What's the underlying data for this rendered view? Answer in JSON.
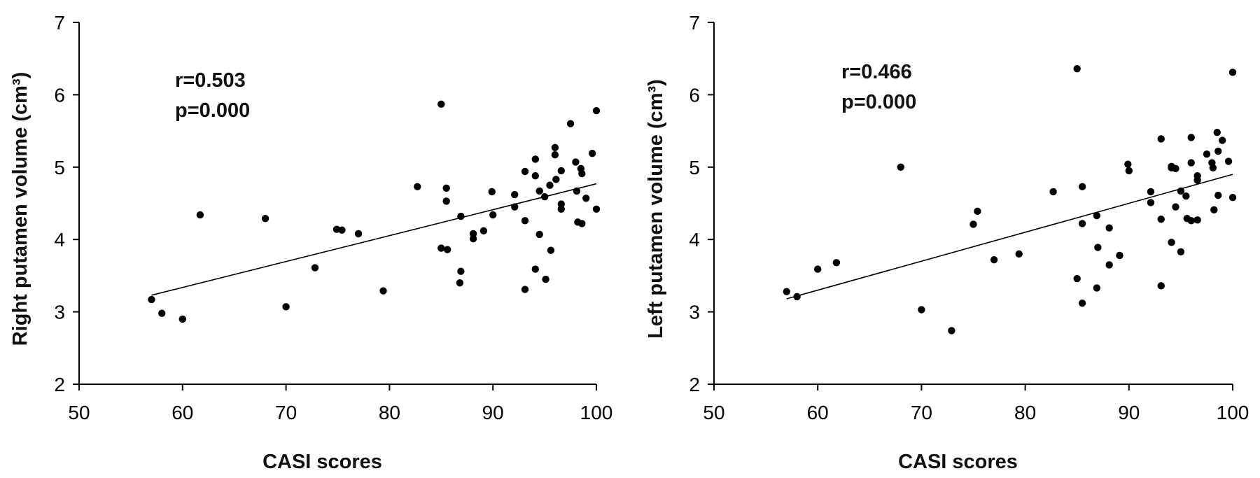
{
  "chart_data": [
    {
      "type": "scatter",
      "xlabel": "CASI scores",
      "ylabel": "Right putamen volume (cm³)",
      "xlim": [
        50,
        100
      ],
      "ylim": [
        2,
        7
      ],
      "xticks": [
        "50",
        "60",
        "70",
        "80",
        "90",
        "100"
      ],
      "yticks": [
        "2",
        "3",
        "4",
        "5",
        "6",
        "7"
      ],
      "annotation": {
        "r": "r=0.503",
        "p": "p=0.000"
      },
      "trendline": {
        "x": [
          57,
          100
        ],
        "y": [
          3.23,
          4.77
        ]
      },
      "points": [
        [
          57,
          3.17
        ],
        [
          58,
          2.98
        ],
        [
          60,
          2.9
        ],
        [
          61.7,
          4.34
        ],
        [
          68,
          4.29
        ],
        [
          70,
          3.07
        ],
        [
          72.8,
          3.61
        ],
        [
          74.9,
          4.14
        ],
        [
          75.4,
          4.13
        ],
        [
          77,
          4.08
        ],
        [
          79.4,
          3.29
        ],
        [
          82.7,
          4.73
        ],
        [
          85,
          5.87
        ],
        [
          85,
          3.88
        ],
        [
          85.5,
          4.53
        ],
        [
          85.5,
          4.71
        ],
        [
          85.6,
          3.86
        ],
        [
          86.9,
          4.32
        ],
        [
          86.9,
          3.56
        ],
        [
          86.8,
          3.4
        ],
        [
          88.1,
          4.01
        ],
        [
          88.1,
          4.08
        ],
        [
          89.1,
          4.12
        ],
        [
          89.9,
          4.66
        ],
        [
          90,
          4.34
        ],
        [
          92.1,
          4.62
        ],
        [
          92.1,
          4.45
        ],
        [
          93.1,
          4.94
        ],
        [
          93.1,
          4.26
        ],
        [
          93.1,
          3.31
        ],
        [
          94.1,
          5.11
        ],
        [
          94.1,
          4.88
        ],
        [
          94.1,
          3.59
        ],
        [
          94.5,
          4.67
        ],
        [
          94.5,
          4.07
        ],
        [
          95,
          4.59
        ],
        [
          95.1,
          3.45
        ],
        [
          95.5,
          4.75
        ],
        [
          95.6,
          3.85
        ],
        [
          96,
          5.27
        ],
        [
          96,
          5.17
        ],
        [
          96.1,
          4.83
        ],
        [
          96.6,
          4.95
        ],
        [
          96.6,
          4.49
        ],
        [
          96.6,
          4.42
        ],
        [
          97.5,
          5.6
        ],
        [
          98,
          5.07
        ],
        [
          98.1,
          4.67
        ],
        [
          98.2,
          4.24
        ],
        [
          98.5,
          4.98
        ],
        [
          98.6,
          4.91
        ],
        [
          98.6,
          4.22
        ],
        [
          99,
          4.57
        ],
        [
          99.6,
          5.19
        ],
        [
          100,
          5.78
        ],
        [
          100,
          4.42
        ]
      ]
    },
    {
      "type": "scatter",
      "xlabel": "CASI scores",
      "ylabel": "Left putamen volume (cm³)",
      "xlim": [
        50,
        100
      ],
      "ylim": [
        2,
        7
      ],
      "xticks": [
        "50",
        "60",
        "70",
        "80",
        "90",
        "100"
      ],
      "yticks": [
        "2",
        "3",
        "4",
        "5",
        "6",
        "7"
      ],
      "annotation": {
        "r": "r=0.466",
        "p": "p=0.000"
      },
      "trendline": {
        "x": [
          57,
          100
        ],
        "y": [
          3.18,
          4.9
        ]
      },
      "points": [
        [
          57,
          3.28
        ],
        [
          58,
          3.21
        ],
        [
          60,
          3.59
        ],
        [
          61.8,
          3.68
        ],
        [
          68,
          5.0
        ],
        [
          70,
          3.03
        ],
        [
          72.9,
          2.74
        ],
        [
          75,
          4.21
        ],
        [
          75.4,
          4.39
        ],
        [
          77,
          3.72
        ],
        [
          79.4,
          3.8
        ],
        [
          82.7,
          4.66
        ],
        [
          85,
          6.36
        ],
        [
          85,
          3.46
        ],
        [
          85.5,
          4.73
        ],
        [
          85.5,
          4.22
        ],
        [
          85.5,
          3.12
        ],
        [
          86.9,
          4.33
        ],
        [
          87,
          3.89
        ],
        [
          86.9,
          3.33
        ],
        [
          88.1,
          4.16
        ],
        [
          88.1,
          3.65
        ],
        [
          89.1,
          3.78
        ],
        [
          89.9,
          5.04
        ],
        [
          90,
          4.95
        ],
        [
          92.1,
          4.66
        ],
        [
          92.1,
          4.51
        ],
        [
          93.1,
          5.39
        ],
        [
          93.1,
          4.28
        ],
        [
          93.1,
          3.36
        ],
        [
          94.1,
          5.01
        ],
        [
          94.1,
          4.99
        ],
        [
          94.1,
          3.96
        ],
        [
          94.5,
          4.98
        ],
        [
          94.5,
          4.45
        ],
        [
          95,
          4.67
        ],
        [
          95,
          3.83
        ],
        [
          95.5,
          4.6
        ],
        [
          95.6,
          4.29
        ],
        [
          96,
          5.41
        ],
        [
          96,
          5.06
        ],
        [
          96,
          4.26
        ],
        [
          96.6,
          4.88
        ],
        [
          96.6,
          4.82
        ],
        [
          96.6,
          4.27
        ],
        [
          97.5,
          5.18
        ],
        [
          98,
          5.06
        ],
        [
          98.1,
          4.99
        ],
        [
          98.2,
          4.41
        ],
        [
          98.5,
          5.48
        ],
        [
          98.6,
          5.22
        ],
        [
          98.6,
          4.61
        ],
        [
          99,
          5.37
        ],
        [
          99.6,
          5.08
        ],
        [
          100,
          6.31
        ],
        [
          100,
          4.58
        ]
      ]
    }
  ]
}
